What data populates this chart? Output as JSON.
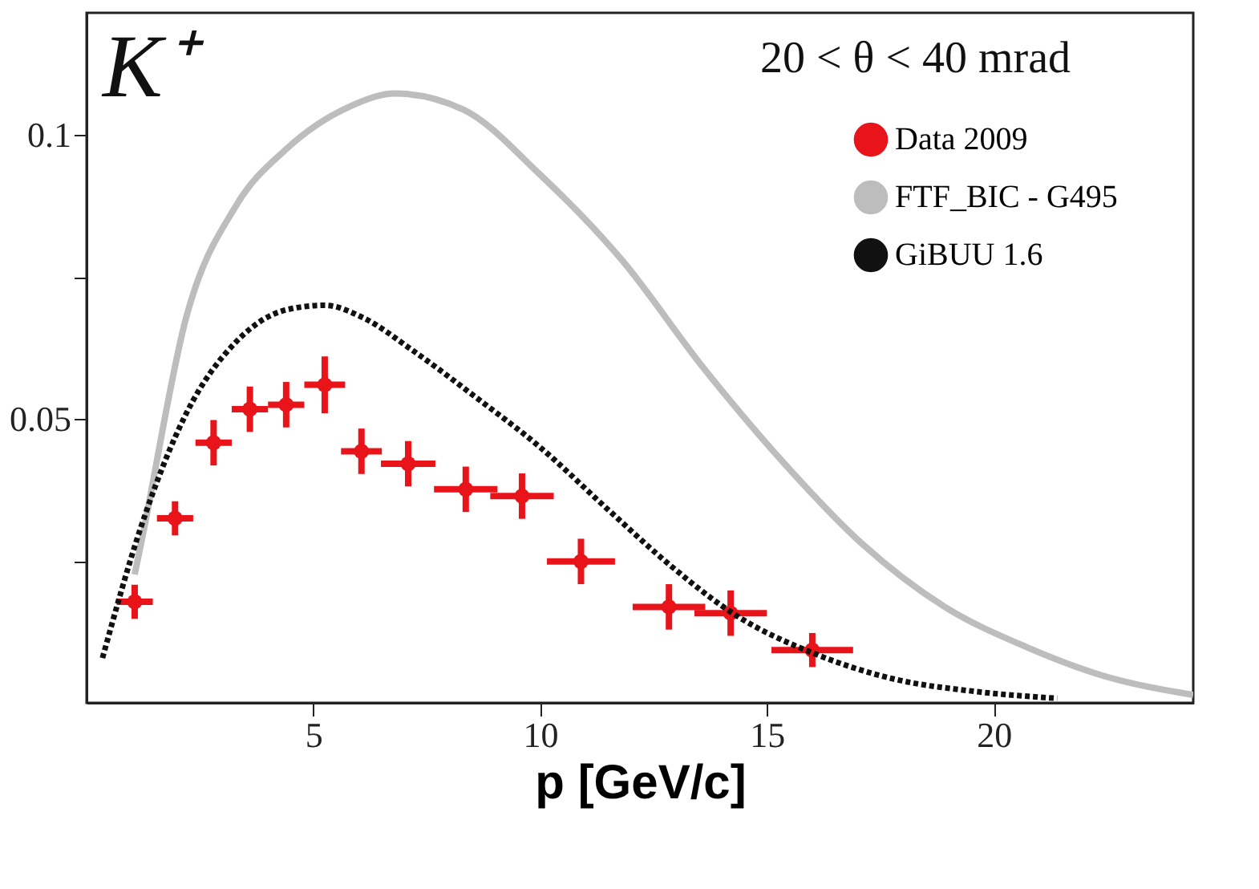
{
  "chart_data": {
    "type": "scatter",
    "xlabel": "p [GeV/c]",
    "annotations": [
      "K⁺",
      "20 < θ < 40 mrad"
    ],
    "xlim": [
      0,
      24.4
    ],
    "xticks": [
      5,
      10,
      15,
      20
    ],
    "ylim": [
      0,
      0.1215
    ],
    "yticks": [
      {
        "value": 0.025,
        "label": null
      },
      0.05,
      {
        "value": 0.075,
        "label": null
      },
      0.1
    ],
    "legend": "top right",
    "grid": false,
    "series": [
      {
        "name": "Data 2009",
        "color": "#e8141a",
        "marker": "circle",
        "x": [
          1.06,
          1.95,
          2.8,
          3.6,
          4.4,
          5.25,
          6.06,
          7.09,
          8.36,
          9.6,
          10.9,
          12.84,
          14.2,
          16.0
        ],
        "values": [
          0.0178,
          0.0325,
          0.0458,
          0.0517,
          0.0525,
          0.056,
          0.0443,
          0.0421,
          0.0376,
          0.0364,
          0.0249,
          0.0169,
          0.0158,
          0.0093
        ],
        "errors": [
          0.003,
          0.003,
          0.004,
          0.004,
          0.004,
          0.005,
          0.004,
          0.004,
          0.004,
          0.004,
          0.004,
          0.004,
          0.004,
          0.003
        ],
        "xerrors": [
          0.4,
          0.4,
          0.4,
          0.4,
          0.4,
          0.45,
          0.45,
          0.6,
          0.7,
          0.7,
          0.75,
          0.8,
          0.8,
          0.9
        ]
      },
      {
        "name": "FTF_BIC - G495",
        "type": "line",
        "color": "#bdbdbd",
        "line_style": "solid",
        "x": [
          1.06,
          1.2,
          2.2,
          3.3,
          4.4,
          5.8,
          6.8,
          8.3,
          10,
          11.8,
          13.6,
          15.4,
          17.1,
          18.9,
          20.7,
          22.4,
          24.4
        ],
        "values": [
          0.0226,
          0.028,
          0.068,
          0.0876,
          0.0975,
          0.105,
          0.1073,
          0.1045,
          0.093,
          0.078,
          0.059,
          0.042,
          0.028,
          0.017,
          0.0099,
          0.0048,
          0.0014
        ]
      },
      {
        "name": "GiBUU 1.6",
        "type": "line",
        "color": "#111111",
        "line_style": "dotted",
        "x": [
          0.35,
          1.2,
          2.2,
          3.3,
          4.4,
          5.25,
          6.1,
          7.2,
          8.6,
          10,
          11.5,
          12.9,
          14.3,
          16.1,
          17.8,
          19.6,
          21.4
        ],
        "values": [
          0.0079,
          0.031,
          0.051,
          0.0636,
          0.0692,
          0.07,
          0.0678,
          0.062,
          0.0537,
          0.045,
          0.034,
          0.024,
          0.0155,
          0.0085,
          0.0042,
          0.002,
          0.0008
        ]
      }
    ]
  }
}
